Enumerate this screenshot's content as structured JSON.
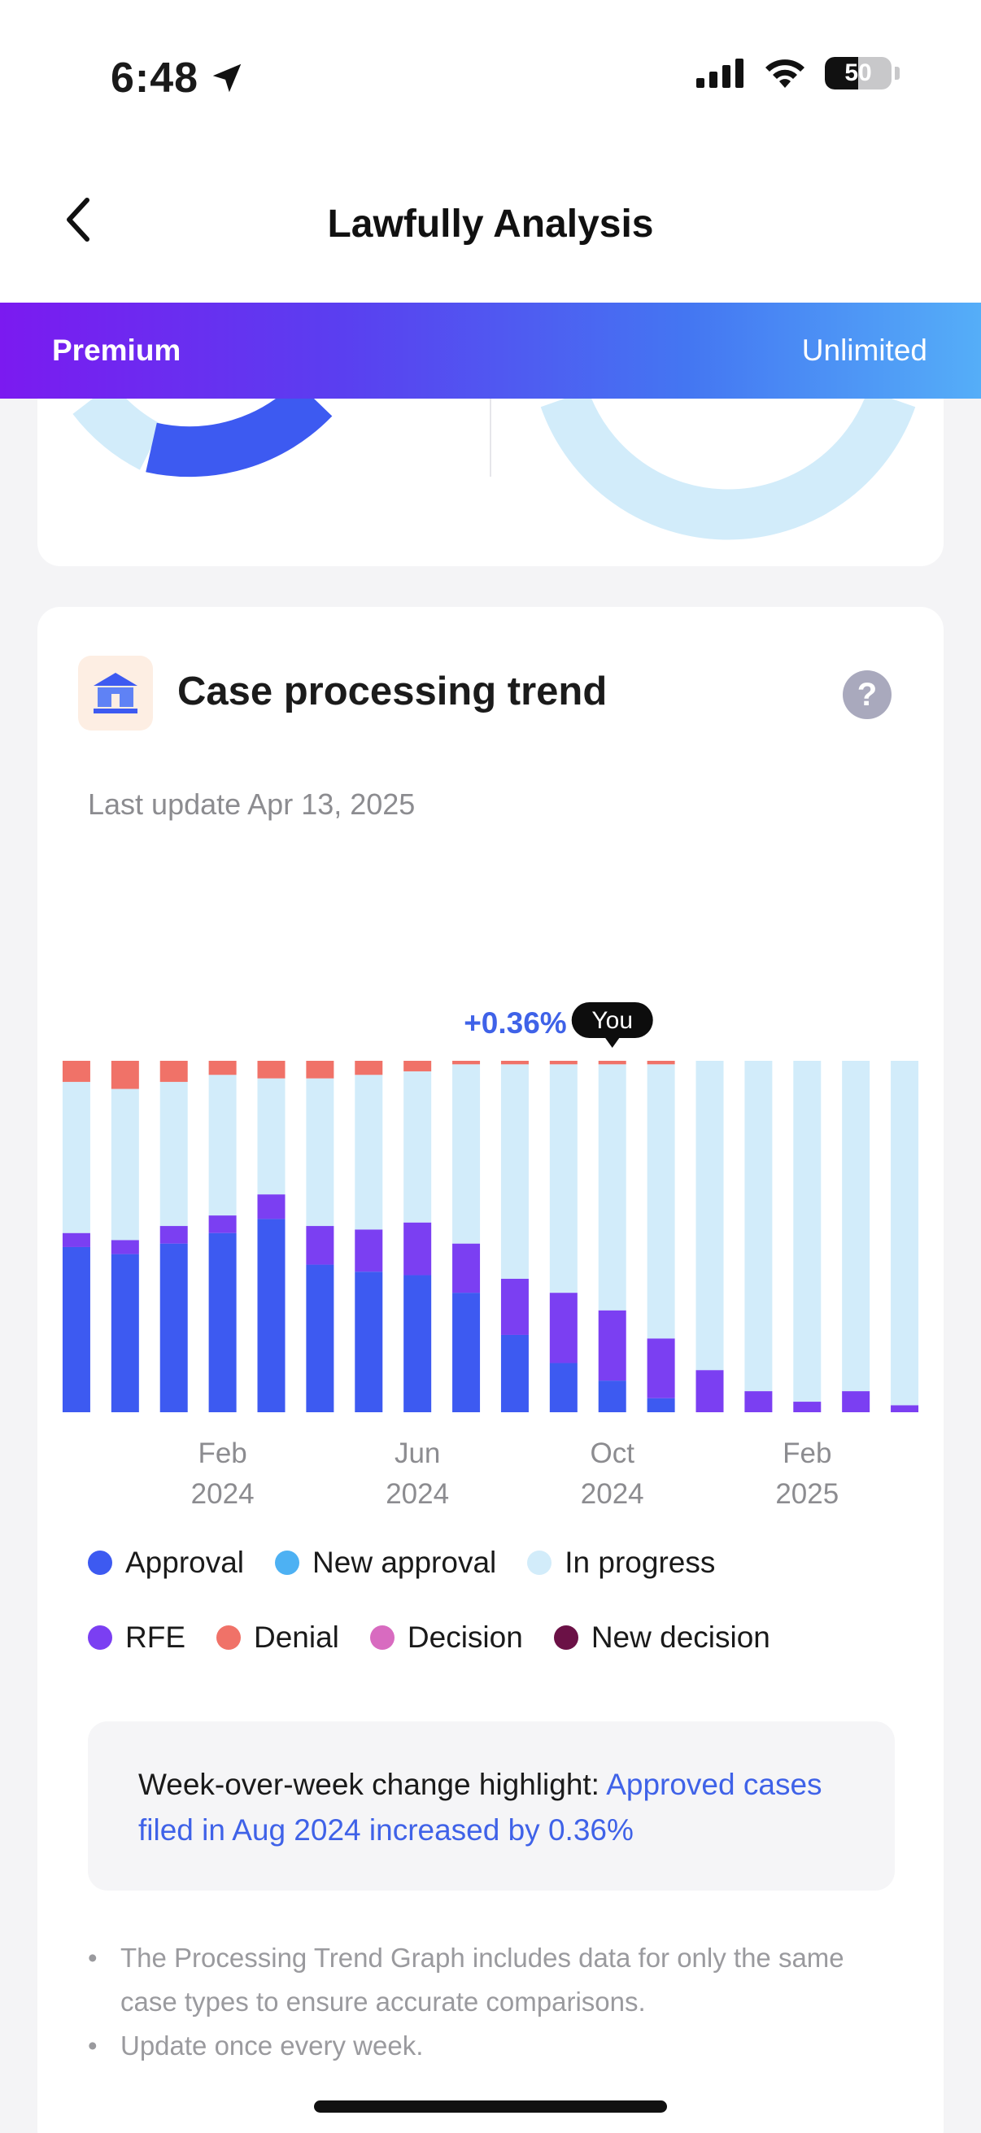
{
  "status_bar": {
    "time": "6:48",
    "battery_level": "50",
    "battery_fraction": 0.5,
    "icons": [
      "location-arrow-icon",
      "cellular-signal-icon",
      "wifi-icon",
      "battery-icon"
    ]
  },
  "nav": {
    "title": "Lawfully Analysis",
    "back_icon": "chevron-left-icon"
  },
  "premium": {
    "label": "Premium",
    "value": "Unlimited",
    "gradient": [
      "#7b1af0",
      "#4476f2",
      "#55aef8"
    ]
  },
  "card": {
    "icon": "government-building-icon",
    "title": "Case processing trend",
    "help_icon": "question-icon",
    "help_label": "?",
    "last_update": "Last update Apr 13, 2025"
  },
  "chart_data": {
    "type": "bar",
    "stacked": true,
    "unit": "percent",
    "x_tick_labels": [
      {
        "month": "Feb",
        "year": "2024",
        "bar_index": 3
      },
      {
        "month": "Jun",
        "year": "2024",
        "bar_index": 7
      },
      {
        "month": "Oct",
        "year": "2024",
        "bar_index": 11
      },
      {
        "month": "Feb",
        "year": "2025",
        "bar_index": 15
      }
    ],
    "callout": {
      "text": "+0.36%",
      "bar_index": 11
    },
    "you_marker": {
      "label": "You",
      "bar_index": 11
    },
    "series": [
      {
        "name": "Approval",
        "color": "#3d5af1",
        "values": [
          47,
          45,
          48,
          51,
          55,
          42,
          40,
          39,
          34,
          22,
          14,
          9,
          4,
          0,
          0,
          0,
          0,
          0
        ]
      },
      {
        "name": "RFE",
        "color": "#7b3ff2",
        "values": [
          4,
          4,
          5,
          5,
          7,
          11,
          12,
          15,
          14,
          16,
          20,
          20,
          17,
          12,
          6,
          3,
          6,
          2
        ]
      },
      {
        "name": "In progress",
        "color": "#d2ecfa",
        "values": [
          43,
          43,
          41,
          40,
          33,
          42,
          44,
          43,
          51,
          61,
          65,
          70,
          78,
          88,
          94,
          97,
          94,
          98
        ]
      },
      {
        "name": "Denial",
        "color": "#f07268",
        "values": [
          6,
          8,
          6,
          4,
          5,
          5,
          4,
          3,
          1,
          1,
          1,
          1,
          1,
          0,
          0,
          0,
          0,
          0
        ]
      }
    ],
    "ylim": [
      0,
      100
    ]
  },
  "legend": {
    "rows": [
      [
        {
          "name": "Approval",
          "color": "#3d5af1"
        },
        {
          "name": "New approval",
          "color": "#4db1f3"
        },
        {
          "name": "In progress",
          "color": "#d2ecfa"
        }
      ],
      [
        {
          "name": "RFE",
          "color": "#7b3ff2"
        },
        {
          "name": "Denial",
          "color": "#f07268"
        },
        {
          "name": "Decision",
          "color": "#d86bc0"
        },
        {
          "name": "New decision",
          "color": "#6b1146"
        }
      ]
    ]
  },
  "highlight": {
    "prefix": "Week-over-week change highlight: ",
    "text": "Approved cases filed in Aug 2024 increased by 0.36%"
  },
  "notes": [
    "The Processing Trend Graph includes data for only the same case types to ensure accurate comparisons.",
    "Update once every week."
  ]
}
